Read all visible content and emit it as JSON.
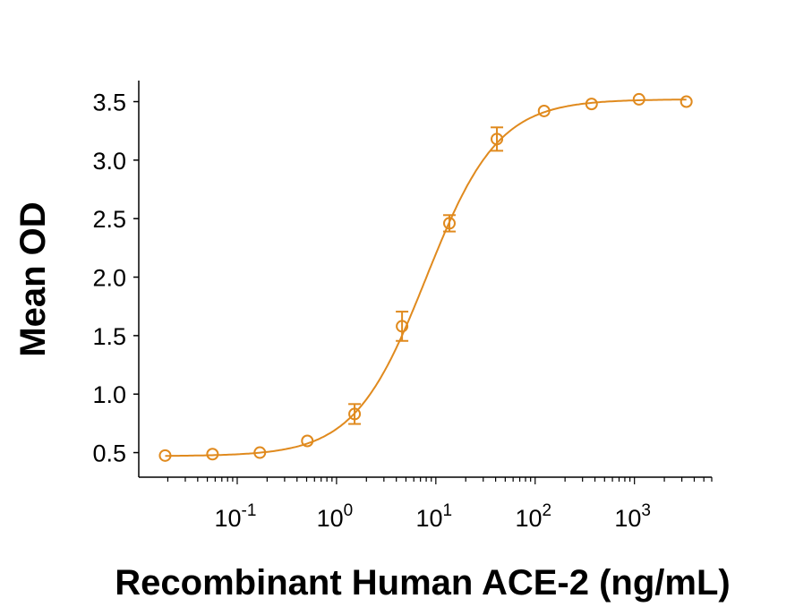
{
  "chart_data": {
    "type": "scatter",
    "title": "",
    "xlabel": "Recombinant Human ACE-2 (ng/mL)",
    "ylabel": "Mean OD",
    "x_scale": "log",
    "xlim": [
      0.0102,
      6000
    ],
    "ylim": [
      0.29,
      3.68
    ],
    "x_ticks": [
      {
        "base": "10",
        "exp": "-1",
        "value": 0.1
      },
      {
        "base": "10",
        "exp": "0",
        "value": 1
      },
      {
        "base": "10",
        "exp": "1",
        "value": 10
      },
      {
        "base": "10",
        "exp": "2",
        "value": 100
      },
      {
        "base": "10",
        "exp": "3",
        "value": 1000
      }
    ],
    "y_ticks": [
      "0.5",
      "1.0",
      "1.5",
      "2.0",
      "2.5",
      "3.0",
      "3.5"
    ],
    "grid": false,
    "color": "#E08A1E",
    "marker": "open-circle",
    "fit_line": "4-parameter logistic",
    "series": [
      {
        "x": [
          0.0188,
          0.0564,
          0.169,
          0.508,
          1.52,
          4.57,
          13.7,
          41.2,
          123,
          370,
          1111,
          3333
        ],
        "y": [
          0.475,
          0.487,
          0.5,
          0.6,
          0.83,
          1.58,
          2.46,
          3.18,
          3.42,
          3.48,
          3.52,
          3.5
        ],
        "error": [
          0.01,
          0.01,
          0.02,
          0.02,
          0.085,
          0.125,
          0.07,
          0.1,
          0.02,
          0.02,
          0.02,
          0.01
        ]
      }
    ]
  }
}
